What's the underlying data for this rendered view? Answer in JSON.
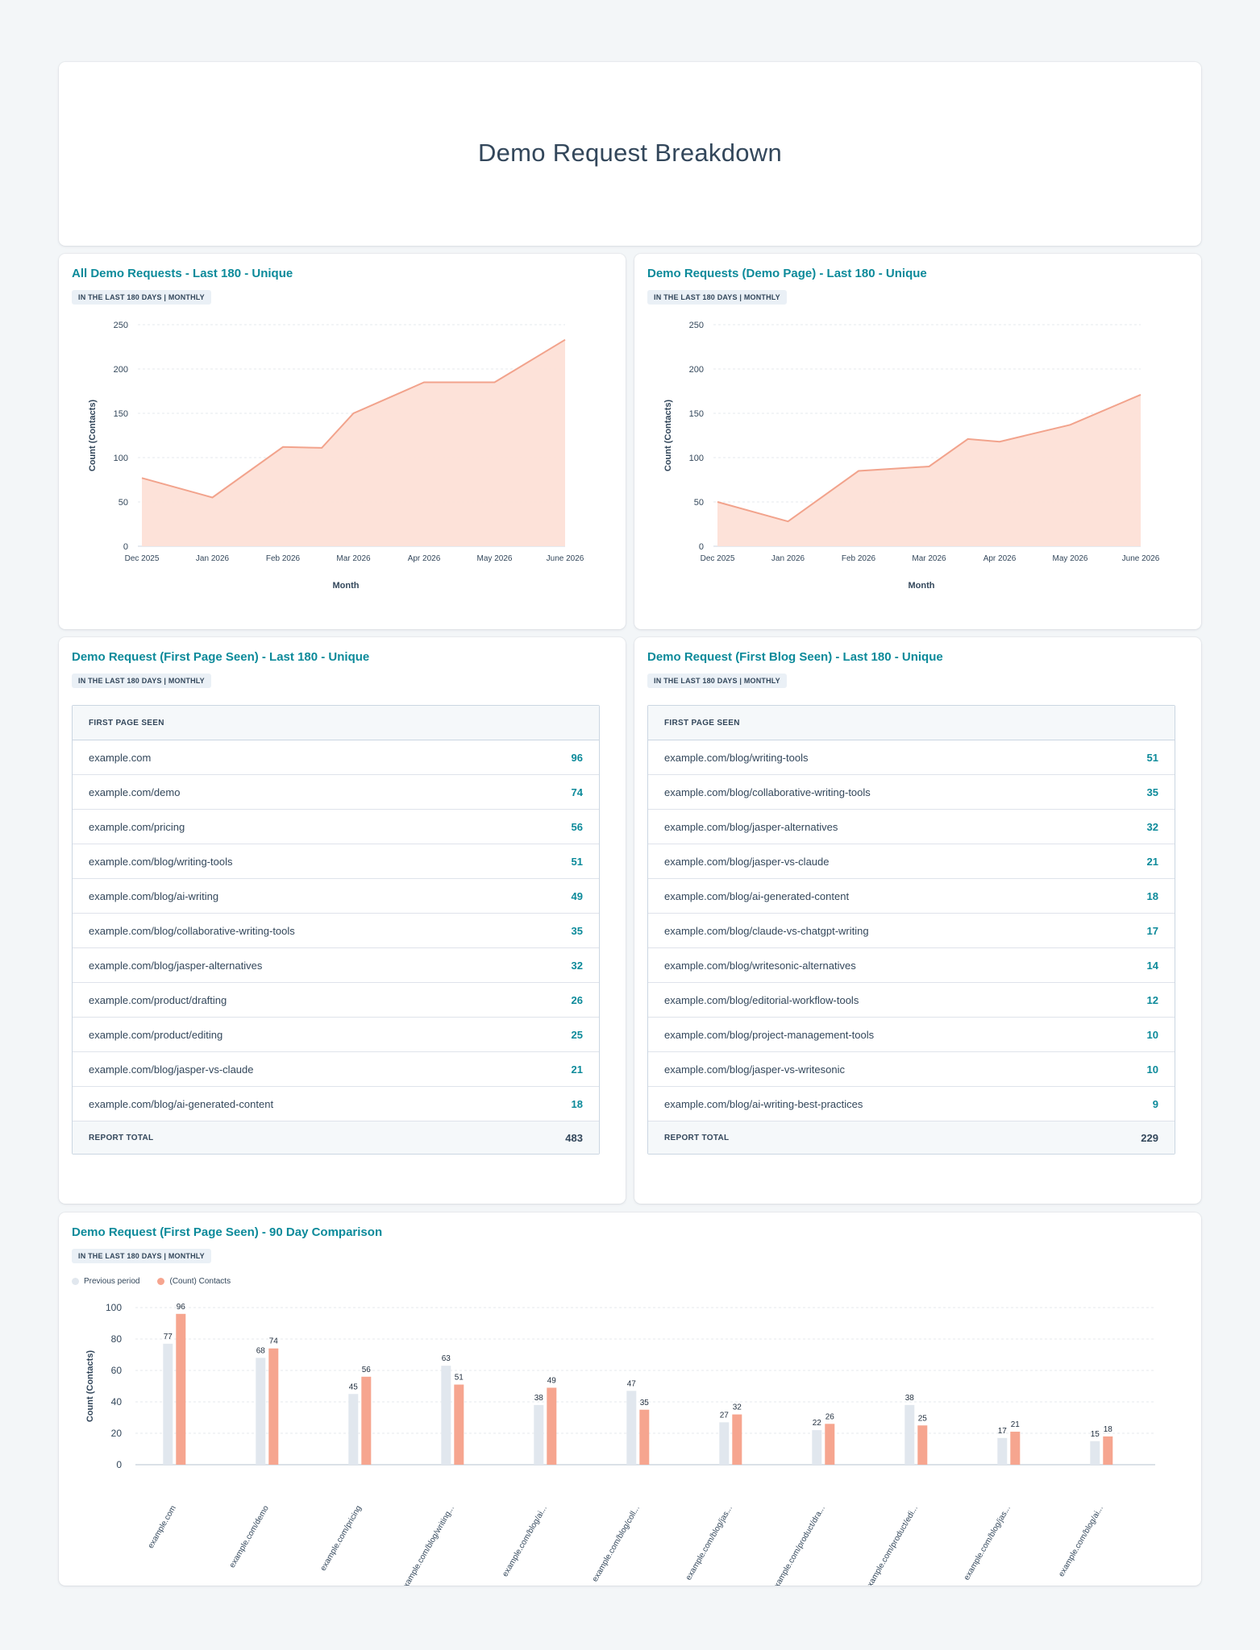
{
  "page": {
    "title": "Demo Request Breakdown"
  },
  "colors": {
    "accent": "#0c8a9a",
    "area_fill": "#fde0d7",
    "area_line": "#f2a38c",
    "bar_current": "#f6a58f",
    "bar_previous": "#e1e7ee"
  },
  "cards": {
    "all_requests": {
      "title": "All Demo Requests - Last 180 - Unique",
      "tag": "IN THE LAST 180 DAYS | MONTHLY"
    },
    "demo_page": {
      "title": "Demo Requests (Demo Page) - Last 180 - Unique",
      "tag": "IN THE LAST 180 DAYS | MONTHLY"
    },
    "first_page": {
      "title": "Demo Request (First Page Seen) - Last 180 - Unique",
      "tag": "IN THE LAST 180 DAYS | MONTHLY",
      "header": "FIRST PAGE SEEN",
      "rows": [
        {
          "label": "example.com",
          "value": "96"
        },
        {
          "label": "example.com/demo",
          "value": "74"
        },
        {
          "label": "example.com/pricing",
          "value": "56"
        },
        {
          "label": "example.com/blog/writing-tools",
          "value": "51"
        },
        {
          "label": "example.com/blog/ai-writing",
          "value": "49"
        },
        {
          "label": "example.com/blog/collaborative-writing-tools",
          "value": "35"
        },
        {
          "label": "example.com/blog/jasper-alternatives",
          "value": "32"
        },
        {
          "label": "example.com/product/drafting",
          "value": "26"
        },
        {
          "label": "example.com/product/editing",
          "value": "25"
        },
        {
          "label": "example.com/blog/jasper-vs-claude",
          "value": "21"
        },
        {
          "label": "example.com/blog/ai-generated-content",
          "value": "18"
        }
      ],
      "total_label": "REPORT TOTAL",
      "total_value": "483"
    },
    "first_blog": {
      "title": "Demo Request (First Blog Seen) - Last 180 - Unique",
      "tag": "IN THE LAST 180 DAYS | MONTHLY",
      "header": "FIRST PAGE SEEN",
      "rows": [
        {
          "label": "example.com/blog/writing-tools",
          "value": "51"
        },
        {
          "label": "example.com/blog/collaborative-writing-tools",
          "value": "35"
        },
        {
          "label": "example.com/blog/jasper-alternatives",
          "value": "32"
        },
        {
          "label": "example.com/blog/jasper-vs-claude",
          "value": "21"
        },
        {
          "label": "example.com/blog/ai-generated-content",
          "value": "18"
        },
        {
          "label": "example.com/blog/claude-vs-chatgpt-writing",
          "value": "17"
        },
        {
          "label": "example.com/blog/writesonic-alternatives",
          "value": "14"
        },
        {
          "label": "example.com/blog/editorial-workflow-tools",
          "value": "12"
        },
        {
          "label": "example.com/blog/project-management-tools",
          "value": "10"
        },
        {
          "label": "example.com/blog/jasper-vs-writesonic",
          "value": "10"
        },
        {
          "label": "example.com/blog/ai-writing-best-practices",
          "value": "9"
        }
      ],
      "total_label": "REPORT TOTAL",
      "total_value": "229"
    },
    "comparison": {
      "title": "Demo Request (First Page Seen) - 90 Day Comparison",
      "tag": "IN THE LAST 180 DAYS | MONTHLY",
      "legend": [
        {
          "label": "Previous period",
          "color": "#e1e7ee"
        },
        {
          "label": "(Count) Contacts",
          "color": "#f6a58f"
        }
      ]
    }
  },
  "chart_data": [
    {
      "type": "area",
      "x": [
        "Dec 2025",
        "Jan 2026",
        "Feb 2026",
        "Mar 2026",
        "Apr 2026",
        "May 2026",
        "June 2026"
      ],
      "points": [
        {
          "x": "Dec 2025",
          "y": 77
        },
        {
          "x": "Jan 2026",
          "y": 55
        },
        {
          "x": "Feb 2026",
          "y": 112
        },
        {
          "x": "Feb 2026",
          "y": 111
        },
        {
          "x": "Mar 2026",
          "y": 150
        },
        {
          "x": "Apr 2026",
          "y": 185
        },
        {
          "x": "May 2026",
          "y": 185
        },
        {
          "x": "June 2026",
          "y": 233
        }
      ],
      "xlabel": "Month",
      "ylabel": "Count (Contacts)",
      "ylim": [
        0,
        250
      ],
      "yticks": [
        0,
        50,
        100,
        150,
        200,
        250
      ],
      "grid": true
    },
    {
      "type": "area",
      "x": [
        "Dec 2025",
        "Jan 2026",
        "Feb 2026",
        "Mar 2026",
        "Apr 2026",
        "May 2026",
        "June 2026"
      ],
      "points": [
        {
          "x": "Dec 2025",
          "y": 50
        },
        {
          "x": "Jan 2026",
          "y": 28
        },
        {
          "x": "Feb 2026",
          "y": 85
        },
        {
          "x": "Mar 2026",
          "y": 90
        },
        {
          "x": "Mar 2026",
          "y": 121
        },
        {
          "x": "Apr 2026",
          "y": 118
        },
        {
          "x": "May 2026",
          "y": 137
        },
        {
          "x": "June 2026",
          "y": 171
        }
      ],
      "xlabel": "Month",
      "ylabel": "Count (Contacts)",
      "ylim": [
        0,
        250
      ],
      "yticks": [
        0,
        50,
        100,
        150,
        200,
        250
      ],
      "grid": true
    },
    {
      "type": "bar",
      "categories": [
        "example.com",
        "example.com/demo",
        "example.com/pricing",
        "example.com/blog/writing...",
        "example.com/blog/ai...",
        "example.com/blog/coll...",
        "example.com/blog/jas...",
        "example.com/product/dra...",
        "example.com/product/edi...",
        "example.com/blog/jas...",
        "example.com/blog/ai..."
      ],
      "series": [
        {
          "name": "Previous period",
          "values": [
            77,
            68,
            45,
            63,
            38,
            47,
            27,
            22,
            38,
            17,
            15
          ]
        },
        {
          "name": "(Count) Contacts",
          "values": [
            96,
            74,
            56,
            51,
            49,
            35,
            32,
            26,
            25,
            21,
            18
          ]
        }
      ],
      "xlabel": "",
      "ylabel": "Count (Contacts)",
      "ylim": [
        0,
        100
      ],
      "yticks": [
        0,
        20,
        40,
        60,
        80,
        100
      ],
      "legend": "top-left",
      "grid": true
    }
  ]
}
